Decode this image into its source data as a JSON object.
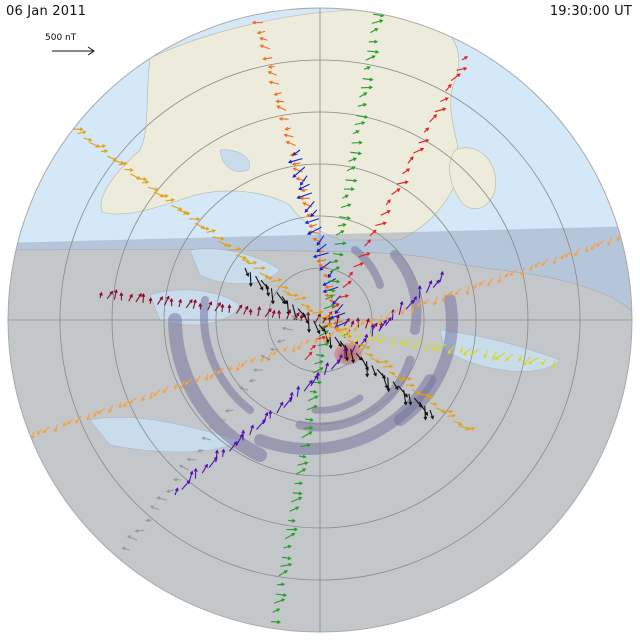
{
  "header": {
    "date": "06 Jan 2011",
    "time": "19:30:00 UT"
  },
  "scale": {
    "label": "500 nT"
  },
  "colors": {
    "ocean": "#d5e8f8",
    "land": "#ecebdc",
    "night": "#9ea4b8",
    "grid": "#888888",
    "convection": "#6e6e9a",
    "hotspot": "#c65050"
  },
  "chains": [
    {
      "name": "orange-chain-north",
      "color": "#f36c1a"
    },
    {
      "name": "blue-chain",
      "color": "#1020d0"
    },
    {
      "name": "green-chain",
      "color": "#20a020"
    },
    {
      "name": "red-chain",
      "color": "#e02020"
    },
    {
      "name": "black-chain",
      "color": "#111111"
    },
    {
      "name": "maroon-chain",
      "color": "#8b0a2a"
    },
    {
      "name": "purple-chain",
      "color": "#5010b0"
    },
    {
      "name": "gold-chain",
      "color": "#e3a012"
    },
    {
      "name": "yellow-chain",
      "color": "#d8d820"
    },
    {
      "name": "light-orange-chain",
      "color": "#f8a040"
    },
    {
      "name": "gray-chain",
      "color": "#999999"
    }
  ]
}
